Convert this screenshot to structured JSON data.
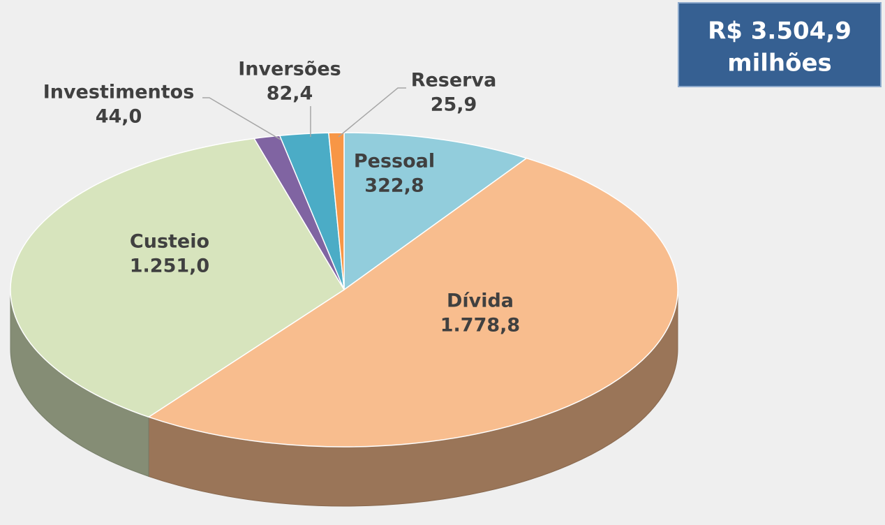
{
  "chart_data": {
    "type": "pie",
    "categories": [
      "Pessoal",
      "Dívida",
      "Custeio",
      "Investimentos",
      "Inversões",
      "Reserva"
    ],
    "values": [
      322.8,
      1778.8,
      1251.0,
      44.0,
      82.4,
      25.9
    ],
    "value_labels": [
      "322,8",
      "1.778,8",
      "1.251,0",
      "44,0",
      "82,4",
      "25,9"
    ],
    "colors": [
      "#92cddc",
      "#f8bd8e",
      "#d7e4bd",
      "#8064a2",
      "#4bacc6",
      "#f79646"
    ],
    "total_label": [
      "R$ 3.504,9",
      "milhões"
    ]
  }
}
